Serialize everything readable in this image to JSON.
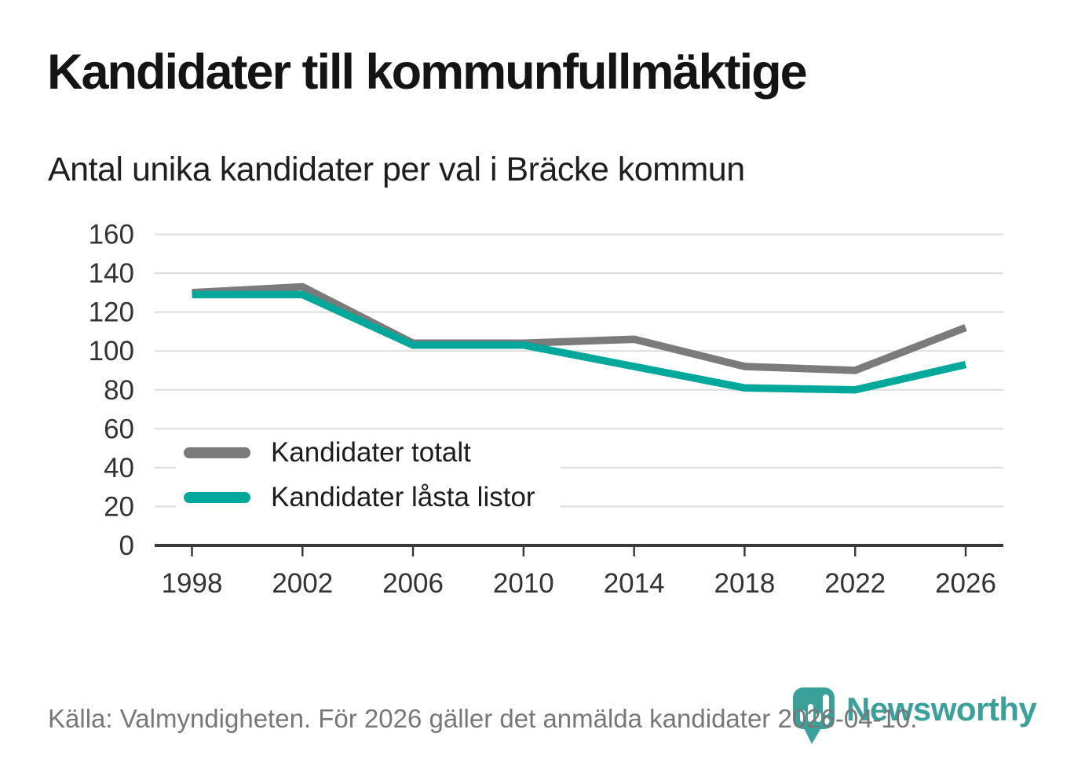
{
  "header": {
    "title": "Kandidater till kommunfullmäktige",
    "subtitle": "Antal unika kandidater per val i Bräcke kommun"
  },
  "chart_data": {
    "type": "line",
    "title": "Kandidater till kommunfullmäktige",
    "subtitle": "Antal unika kandidater per val i Bräcke kommun",
    "x": [
      "1998",
      "2002",
      "2006",
      "2010",
      "2014",
      "2018",
      "2022",
      "2026"
    ],
    "series": [
      {
        "name": "Kandidater totalt",
        "color": "#7b7b7b",
        "values": [
          130,
          133,
          104,
          104,
          106,
          92,
          90,
          112
        ]
      },
      {
        "name": "Kandidater låsta listor",
        "color": "#00a79b",
        "values": [
          129,
          129,
          103,
          103,
          92,
          81,
          80,
          93
        ]
      }
    ],
    "ylim": [
      0,
      160
    ],
    "yticks": [
      0,
      20,
      40,
      60,
      80,
      100,
      120,
      140,
      160
    ],
    "grid": "horizontal",
    "legend_position": "inside-bottom-left"
  },
  "footer": {
    "source_text": "Källa: Valmyndigheten. För 2026 gäller det anmälda kandidater 2026-04-10.",
    "brand_name": "Newsworthy",
    "brand_color": "#3aa099"
  },
  "colors": {
    "gridline": "#dcdcdc",
    "axis": "#3a3a3a",
    "tick_label": "#333333",
    "title_text": "#141414",
    "muted_text": "#777777"
  }
}
